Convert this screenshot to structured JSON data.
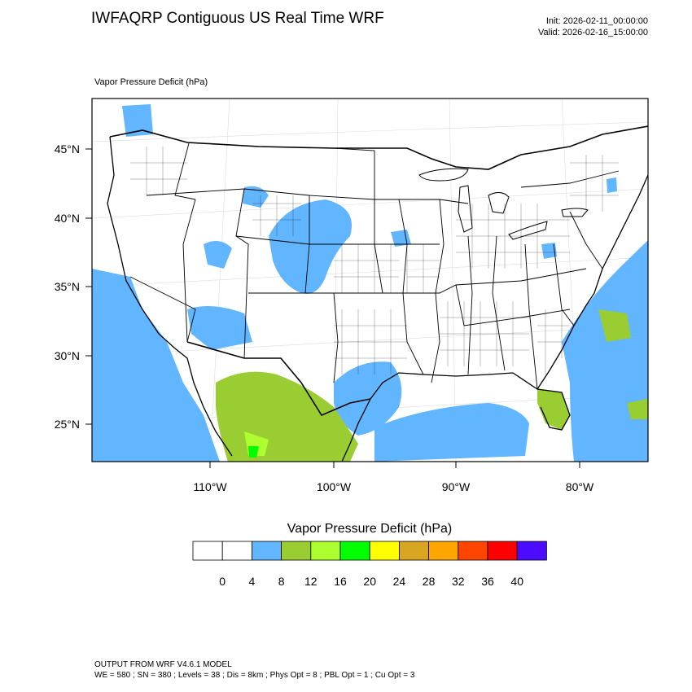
{
  "header": {
    "title": "IWFAQRP Contiguous US Real Time WRF",
    "init": "Init: 2026-02-11_00:00:00",
    "valid": "Valid: 2026-02-16_15:00:00",
    "field_label": "Vapor Pressure Deficit   (hPa)"
  },
  "map": {
    "lat_labels": [
      "45°N",
      "40°N",
      "35°N",
      "30°N",
      "25°N"
    ],
    "lon_labels": [
      "110°W",
      "100°W",
      "90°W",
      "80°W"
    ],
    "water_color": "#ffffff",
    "land_fill": "#ffffff"
  },
  "colorbar": {
    "title": "Vapor Pressure Deficit  (hPa)",
    "colors": [
      "#ffffff",
      "#ffffff",
      "#62b5ff",
      "#9acd32",
      "#adff2f",
      "#00ff00",
      "#ffff00",
      "#daa520",
      "#ffa500",
      "#ff4500",
      "#ff0000",
      "#4b0cff"
    ],
    "tick_labels": [
      "0",
      "4",
      "8",
      "12",
      "16",
      "20",
      "24",
      "28",
      "32",
      "36",
      "40"
    ]
  },
  "footer": {
    "line1": "OUTPUT FROM WRF V4.6.1 MODEL",
    "line2": "WE = 580 ; SN = 380 ; Levels = 38 ; Dis = 8km ; Phys Opt = 8 ; PBL Opt = 1 ; Cu Opt = 3"
  }
}
